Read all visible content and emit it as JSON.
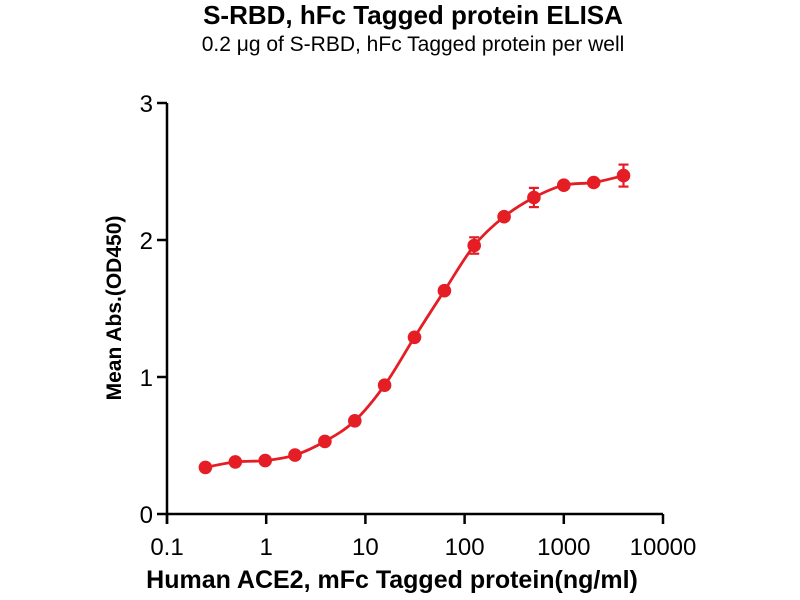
{
  "chart_data": {
    "type": "line",
    "title": "S-RBD, hFc Tagged protein ELISA",
    "subtitle": "0.2 μg of S-RBD, hFc Tagged protein per well",
    "xlabel": "Human ACE2, mFc Tagged protein(ng/ml)",
    "ylabel": "Mean Abs.(OD450)",
    "x_scale": "log10",
    "xlim": [
      0.1,
      10000
    ],
    "ylim": [
      0,
      3
    ],
    "x_ticks": [
      0.1,
      1,
      10,
      100,
      1000,
      10000
    ],
    "x_tick_labels": [
      "0.1",
      "1",
      "10",
      "100",
      "1000",
      "10000"
    ],
    "y_ticks": [
      0,
      1,
      2,
      3
    ],
    "y_tick_labels": [
      "0",
      "1",
      "2",
      "3"
    ],
    "grid": false,
    "legend": null,
    "colors": {
      "series": "#e41e24",
      "axis": "#000000",
      "background": "#ffffff"
    },
    "series": [
      {
        "marker": "circle",
        "x": [
          0.244,
          0.488,
          0.977,
          1.953,
          3.906,
          7.813,
          15.625,
          31.25,
          62.5,
          125,
          250,
          500,
          1000,
          2000,
          4000
        ],
        "y": [
          0.34,
          0.38,
          0.39,
          0.43,
          0.53,
          0.68,
          0.94,
          1.29,
          1.63,
          1.96,
          2.17,
          2.31,
          2.4,
          2.42,
          2.47
        ],
        "y_err": [
          0,
          0,
          0,
          0,
          0,
          0,
          0,
          0,
          0,
          0.06,
          0,
          0.07,
          0,
          0,
          0.08
        ]
      }
    ]
  }
}
